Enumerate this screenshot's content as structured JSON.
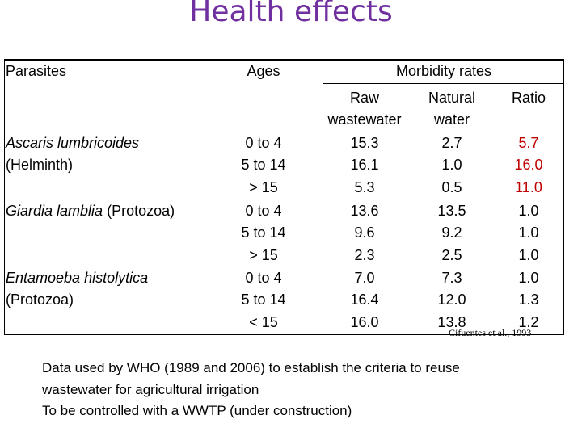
{
  "title": "Health effects",
  "headers": {
    "parasites": "Parasites",
    "ages": "Ages",
    "morbidity": "Morbidity rates",
    "raw_line1": "Raw",
    "raw_line2": "wastewater",
    "natural_line1": "Natural",
    "natural_line2": "water",
    "ratio": "Ratio"
  },
  "parasites": [
    {
      "name": "Ascaris lumbricoides",
      "group": "(Helminth)"
    },
    {
      "name": "Giardia lamblia",
      "group": "(Protozoa)"
    },
    {
      "name": "Entamoeba histolytica",
      "group": "(Protozoa)"
    }
  ],
  "rows": [
    {
      "age": "0 to 4",
      "raw": "15.3",
      "natural": "2.7",
      "ratio": "5.7"
    },
    {
      "age": "5 to 14",
      "raw": "16.1",
      "natural": "1.0",
      "ratio": "16.0"
    },
    {
      "age": "> 15",
      "raw": "5.3",
      "natural": "0.5",
      "ratio": "11.0"
    },
    {
      "age": "0 to 4",
      "raw": "13.6",
      "natural": "13.5",
      "ratio": "1.0"
    },
    {
      "age": "5 to 14",
      "raw": "9.6",
      "natural": "9.2",
      "ratio": "1.0"
    },
    {
      "age": "> 15",
      "raw": "2.3",
      "natural": "2.5",
      "ratio": "1.0"
    },
    {
      "age": "0 to 4",
      "raw": "7.0",
      "natural": "7.3",
      "ratio": "1.0"
    },
    {
      "age": "5 to 14",
      "raw": "16.4",
      "natural": "12.0",
      "ratio": "1.3"
    },
    {
      "age": "< 15",
      "raw": "16.0",
      "natural": "13.8",
      "ratio": "1.2"
    }
  ],
  "highlight_color": "#c00000",
  "title_color": "#7030a0",
  "citation": "Cifuentes et al., 1993",
  "footer": {
    "line1": "Data  used by WHO (1989 and 2006) to establish the criteria to reuse",
    "line2": "wastewater for agricultural irrigation",
    "line3": "To be controlled with a WWTP (under construction)"
  }
}
